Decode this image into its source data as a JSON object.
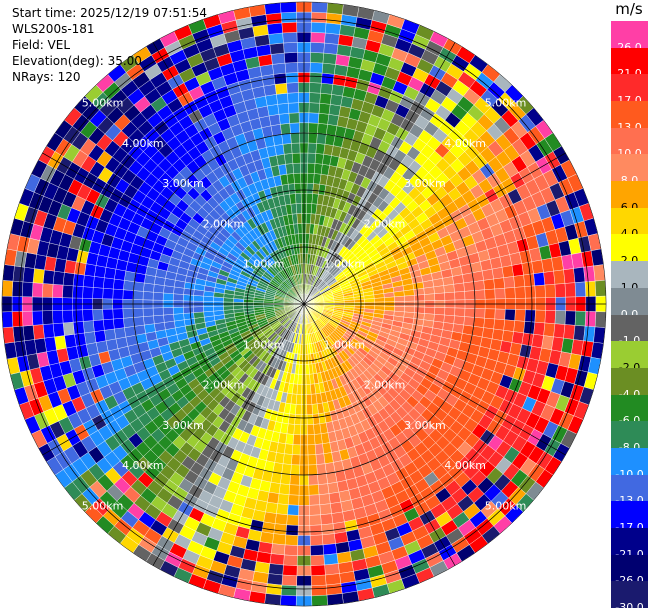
{
  "header": {
    "start_time": "Start time: 2025/12/19 07:51:54",
    "instrument": "WLS200s-181",
    "field": "Field: VEL",
    "elevation": "Elevation(deg): 35.00",
    "nrays": "NRays: 120"
  },
  "colorbar": {
    "unit": "m/s",
    "levels": [
      {
        "label": "26.0",
        "color": "#ff3fa6"
      },
      {
        "label": "21.0",
        "color": "#ff0000"
      },
      {
        "label": "17.0",
        "color": "#ff2a2a"
      },
      {
        "label": "13.0",
        "color": "#ff5a1e"
      },
      {
        "label": "10.0",
        "color": "#ff6f50"
      },
      {
        "label": "8.0",
        "color": "#ff8a60"
      },
      {
        "label": "6.0",
        "color": "#ffa500"
      },
      {
        "label": "4.0",
        "color": "#ffd700"
      },
      {
        "label": "2.0",
        "color": "#ffff00"
      },
      {
        "label": "1.0",
        "color": "#a9b6be"
      },
      {
        "label": "0.0",
        "color": "#7f8b93"
      },
      {
        "label": "-1.0",
        "color": "#636363"
      },
      {
        "label": "-2.0",
        "color": "#9acd32"
      },
      {
        "label": "-4.0",
        "color": "#6b8e23"
      },
      {
        "label": "-6.0",
        "color": "#228b22"
      },
      {
        "label": "-8.0",
        "color": "#2e8b57"
      },
      {
        "label": "-10.0",
        "color": "#1e90ff"
      },
      {
        "label": "-13.0",
        "color": "#4169e1"
      },
      {
        "label": "-17.0",
        "color": "#0000ff"
      },
      {
        "label": "-21.0",
        "color": "#00008b"
      },
      {
        "label": "-26.0",
        "color": "#000070"
      },
      {
        "label": "-30.0",
        "color": "#1a1a6e"
      }
    ]
  },
  "chart_data": {
    "type": "heatmap",
    "projection": "polar",
    "field": "VEL",
    "units": "m/s",
    "elevation_deg": 35.0,
    "n_rays": 120,
    "range_rings_km": [
      1.0,
      2.0,
      3.0,
      4.0,
      5.0
    ],
    "range_ring_labels": [
      "1.00km",
      "2.00km",
      "3.00km",
      "4.00km",
      "5.00km"
    ],
    "value_range": [
      -30,
      30
    ],
    "gates_per_ray": 30,
    "max_range_km": 5.3,
    "flow_direction_to_deg": 120,
    "speed_scale": [
      {
        "range_km": 0.0,
        "speed_ms": 3
      },
      {
        "range_km": 1.0,
        "speed_ms": 8
      },
      {
        "range_km": 2.0,
        "speed_ms": 11
      },
      {
        "range_km": 3.0,
        "speed_ms": 14
      },
      {
        "range_km": 4.0,
        "speed_ms": 18
      },
      {
        "range_km": 5.0,
        "speed_ms": 24
      }
    ],
    "noise_onset_km": 3.5,
    "grid": true
  }
}
